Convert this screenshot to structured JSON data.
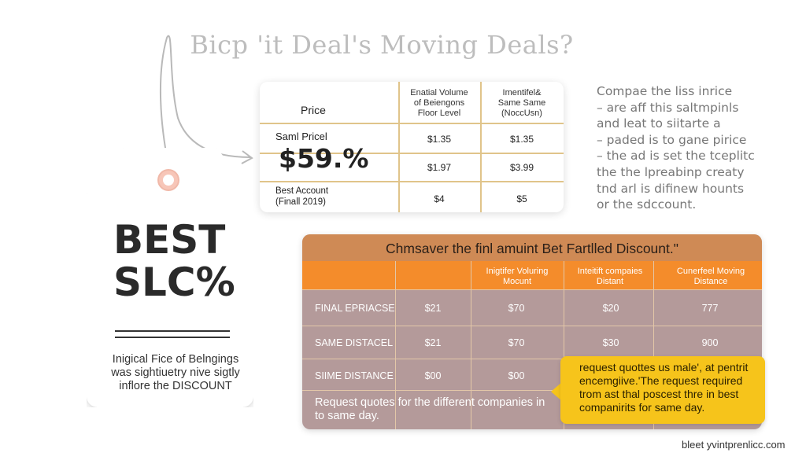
{
  "title": "Bicp 'it Deal's Moving Deals?",
  "tag": {
    "big_line1": "BEST",
    "big_line2": "SLC%",
    "caption_line1": "Inigical Fice of Belngings",
    "caption_line2": "was sightiuetry nive sigtly",
    "caption_line3": "inflore the DISCOUNT"
  },
  "top_table": {
    "header_col1": "Price",
    "header_col2": [
      "Enatial Volume",
      "of Beiengons",
      "Floor Level"
    ],
    "header_col3": [
      "Imentifel&",
      "Same Same",
      "(NoccUsn)"
    ],
    "row1_label": "Saml Pricel",
    "big_price": "$59.%",
    "row1_col2": "$1.35",
    "row1_col3": "$1.35",
    "row2_col2": "$1.97",
    "row2_col3": "$3.99",
    "row3_label_line1": "Best Account",
    "row3_label_line2": "(Finall 2019)",
    "row3_col2": "$4",
    "row3_col3": "$5"
  },
  "notes": [
    "Compae the liss inrice",
    "– are aff this saltmpinls",
    "and leat to siitarte a",
    "– paded is to gane pirice",
    "– the ad is set the tceplitc",
    "the the lpreabinp creaty",
    "tnd arl is difinew hounts",
    "or the sdccount."
  ],
  "orange_table": {
    "title": "Chmsaver the finl amuint Bet Fartlled Discount.\"",
    "headers": [
      [
        "Inigtifer Voluring",
        "Mocunt"
      ],
      [
        "Inteitift compaies",
        "Distant"
      ],
      [
        "Cunerfeel Moving",
        "Distance"
      ]
    ],
    "rows": [
      {
        "label": "FINAL ΕΡRIACSE",
        "c1": "$21",
        "c2": "$70",
        "c3": "$20",
        "c4": "777"
      },
      {
        "label": "SAME DISTACEL",
        "c1": "$21",
        "c2": "$70",
        "c3": "$30",
        "c4": "900"
      },
      {
        "label": "SIIME DISTANCE",
        "c1": "$00",
        "c2": "$00",
        "c3": "",
        "c4": ""
      }
    ],
    "footer_line1": "Request quotes for the different companies in",
    "footer_line2": "to same day."
  },
  "callout": [
    "request quottes us male', at pentrit",
    "encemgiive.'The request required",
    "trom ast thal poscest thre in best",
    "companirits for same day."
  ],
  "watermark": "bleet yvintprenlicc.com",
  "colors": {
    "orange_header": "#f48c2b",
    "title_band": "#cf8a55",
    "table_body": "#b49a9a",
    "callout": "#f6c41b",
    "table_lines": "#e0c48a"
  }
}
